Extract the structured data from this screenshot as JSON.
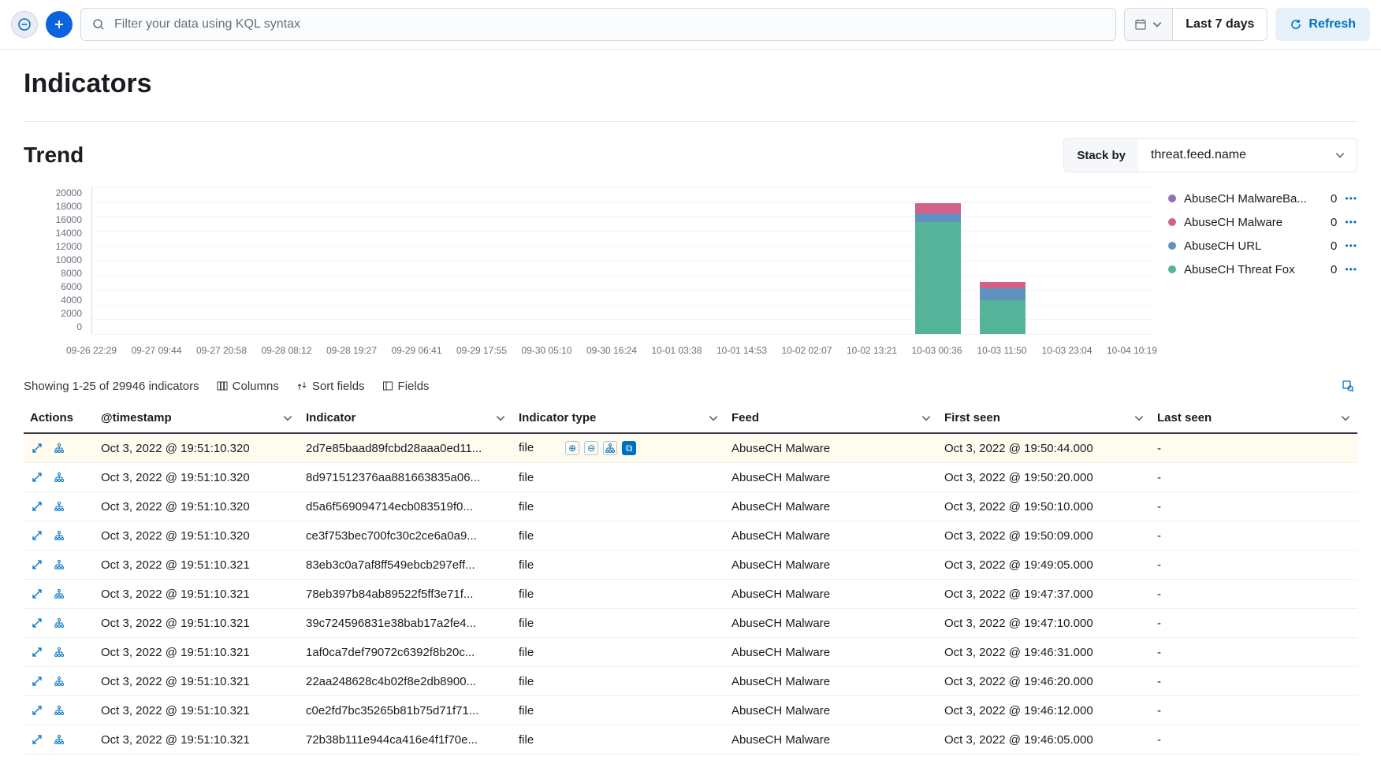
{
  "topbar": {
    "search_placeholder": "Filter your data using KQL syntax",
    "date_label": "Last 7 days",
    "refresh_label": "Refresh"
  },
  "page_title": "Indicators",
  "trend": {
    "section_title": "Trend",
    "stack_by_label": "Stack by",
    "stack_by_value": "threat.feed.name",
    "chart": {
      "type": "stacked-bar",
      "y_ticks": [
        "20000",
        "18000",
        "16000",
        "14000",
        "12000",
        "10000",
        "8000",
        "6000",
        "4000",
        "2000",
        "0"
      ],
      "y_max": 20000,
      "x_labels": [
        "09-26 22:29",
        "09-27 09:44",
        "09-27 20:58",
        "09-28 08:12",
        "09-28 19:27",
        "09-29 06:41",
        "09-29 17:55",
        "09-30 05:10",
        "09-30 16:24",
        "10-01 03:38",
        "10-01 14:53",
        "10-02 02:07",
        "10-02 13:21",
        "10-03 00:36",
        "10-03 11:50",
        "10-03 23:04",
        "10-04 10:19"
      ],
      "bars": [
        {
          "x_index": 13,
          "segments": [
            {
              "series": "AbuseCH Threat Fox",
              "value": 15200,
              "color": "#54b399"
            },
            {
              "series": "AbuseCH URL",
              "value": 1200,
              "color": "#6092c0"
            },
            {
              "series": "AbuseCH Malware",
              "value": 1400,
              "color": "#d36086"
            }
          ]
        },
        {
          "x_index": 14,
          "segments": [
            {
              "series": "AbuseCH Threat Fox",
              "value": 4600,
              "color": "#54b399"
            },
            {
              "series": "AbuseCH URL",
              "value": 1600,
              "color": "#6092c0"
            },
            {
              "series": "AbuseCH Malware",
              "value": 900,
              "color": "#d36086"
            }
          ]
        }
      ],
      "background_color": "#ffffff",
      "grid_color": "#f2f4f7"
    },
    "legend": [
      {
        "name": "AbuseCH MalwareBa...",
        "count": "0",
        "color": "#9170b8"
      },
      {
        "name": "AbuseCH Malware",
        "count": "0",
        "color": "#d36086"
      },
      {
        "name": "AbuseCH URL",
        "count": "0",
        "color": "#6092c0"
      },
      {
        "name": "AbuseCH Threat Fox",
        "count": "0",
        "color": "#54b399"
      }
    ]
  },
  "table": {
    "count_text": "Showing 1-25 of 29946 indicators",
    "toolbar_columns": "Columns",
    "toolbar_sort": "Sort fields",
    "toolbar_fields": "Fields",
    "columns": [
      "Actions",
      "@timestamp",
      "Indicator",
      "Indicator type",
      "Feed",
      "First seen",
      "Last seen"
    ],
    "rows": [
      {
        "ts": "Oct 3, 2022 @ 19:51:10.320",
        "ind": "2d7e85baad89fcbd28aaa0ed11...",
        "type": "file",
        "feed": "AbuseCH Malware",
        "first": "Oct 3, 2022 @ 19:50:44.000",
        "last": "-",
        "hl": true
      },
      {
        "ts": "Oct 3, 2022 @ 19:51:10.320",
        "ind": "8d971512376aa881663835a06...",
        "type": "file",
        "feed": "AbuseCH Malware",
        "first": "Oct 3, 2022 @ 19:50:20.000",
        "last": "-"
      },
      {
        "ts": "Oct 3, 2022 @ 19:51:10.320",
        "ind": "d5a6f569094714ecb083519f0...",
        "type": "file",
        "feed": "AbuseCH Malware",
        "first": "Oct 3, 2022 @ 19:50:10.000",
        "last": "-"
      },
      {
        "ts": "Oct 3, 2022 @ 19:51:10.320",
        "ind": "ce3f753bec700fc30c2ce6a0a9...",
        "type": "file",
        "feed": "AbuseCH Malware",
        "first": "Oct 3, 2022 @ 19:50:09.000",
        "last": "-"
      },
      {
        "ts": "Oct 3, 2022 @ 19:51:10.321",
        "ind": "83eb3c0a7af8ff549ebcb297eff...",
        "type": "file",
        "feed": "AbuseCH Malware",
        "first": "Oct 3, 2022 @ 19:49:05.000",
        "last": "-"
      },
      {
        "ts": "Oct 3, 2022 @ 19:51:10.321",
        "ind": "78eb397b84ab89522f5ff3e71f...",
        "type": "file",
        "feed": "AbuseCH Malware",
        "first": "Oct 3, 2022 @ 19:47:37.000",
        "last": "-"
      },
      {
        "ts": "Oct 3, 2022 @ 19:51:10.321",
        "ind": "39c724596831e38bab17a2fe4...",
        "type": "file",
        "feed": "AbuseCH Malware",
        "first": "Oct 3, 2022 @ 19:47:10.000",
        "last": "-"
      },
      {
        "ts": "Oct 3, 2022 @ 19:51:10.321",
        "ind": "1af0ca7def79072c6392f8b20c...",
        "type": "file",
        "feed": "AbuseCH Malware",
        "first": "Oct 3, 2022 @ 19:46:31.000",
        "last": "-"
      },
      {
        "ts": "Oct 3, 2022 @ 19:51:10.321",
        "ind": "22aa248628c4b02f8e2db8900...",
        "type": "file",
        "feed": "AbuseCH Malware",
        "first": "Oct 3, 2022 @ 19:46:20.000",
        "last": "-"
      },
      {
        "ts": "Oct 3, 2022 @ 19:51:10.321",
        "ind": "c0e2fd7bc35265b81b75d71f71...",
        "type": "file",
        "feed": "AbuseCH Malware",
        "first": "Oct 3, 2022 @ 19:46:12.000",
        "last": "-"
      },
      {
        "ts": "Oct 3, 2022 @ 19:51:10.321",
        "ind": "72b38b111e944ca416e4f1f70e...",
        "type": "file",
        "feed": "AbuseCH Malware",
        "first": "Oct 3, 2022 @ 19:46:05.000",
        "last": "-"
      }
    ]
  }
}
